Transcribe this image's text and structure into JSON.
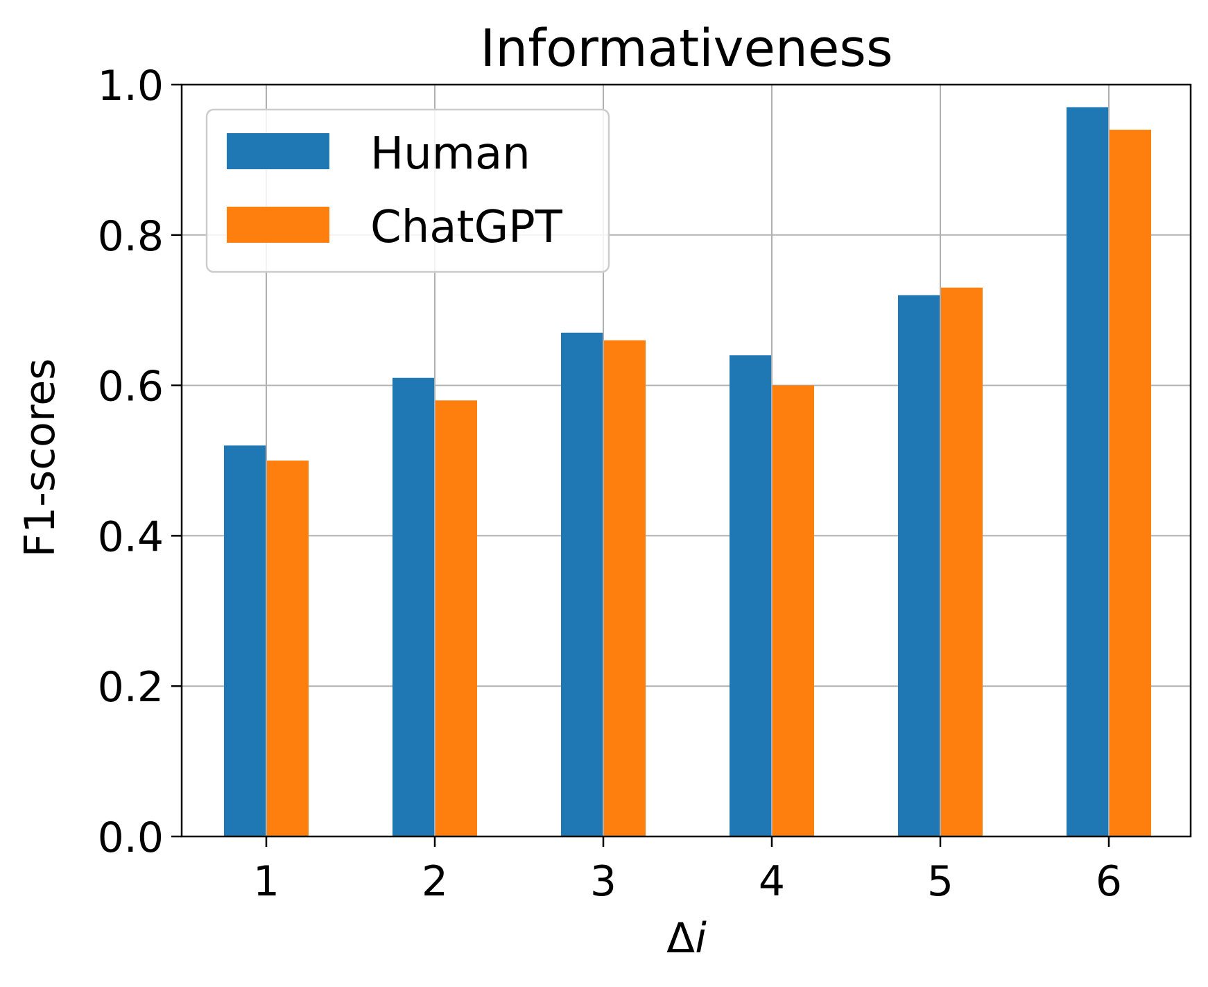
{
  "chart_data": {
    "type": "bar",
    "title": "Informativeness",
    "xlabel_main": "Δ",
    "xlabel_italic": "i",
    "ylabel": "F1-scores",
    "categories": [
      "1",
      "2",
      "3",
      "4",
      "5",
      "6"
    ],
    "series": [
      {
        "name": "Human",
        "color": "#1f77b4",
        "values": [
          0.52,
          0.61,
          0.67,
          0.64,
          0.72,
          0.97
        ]
      },
      {
        "name": "ChatGPT",
        "color": "#ff7f0e",
        "values": [
          0.5,
          0.58,
          0.66,
          0.6,
          0.73,
          0.94
        ]
      }
    ],
    "ylim": [
      0,
      1.0
    ],
    "yticks": [
      "0.0",
      "0.2",
      "0.4",
      "0.6",
      "0.8",
      "1.0"
    ],
    "grid": true,
    "legend_position": "top-left"
  }
}
